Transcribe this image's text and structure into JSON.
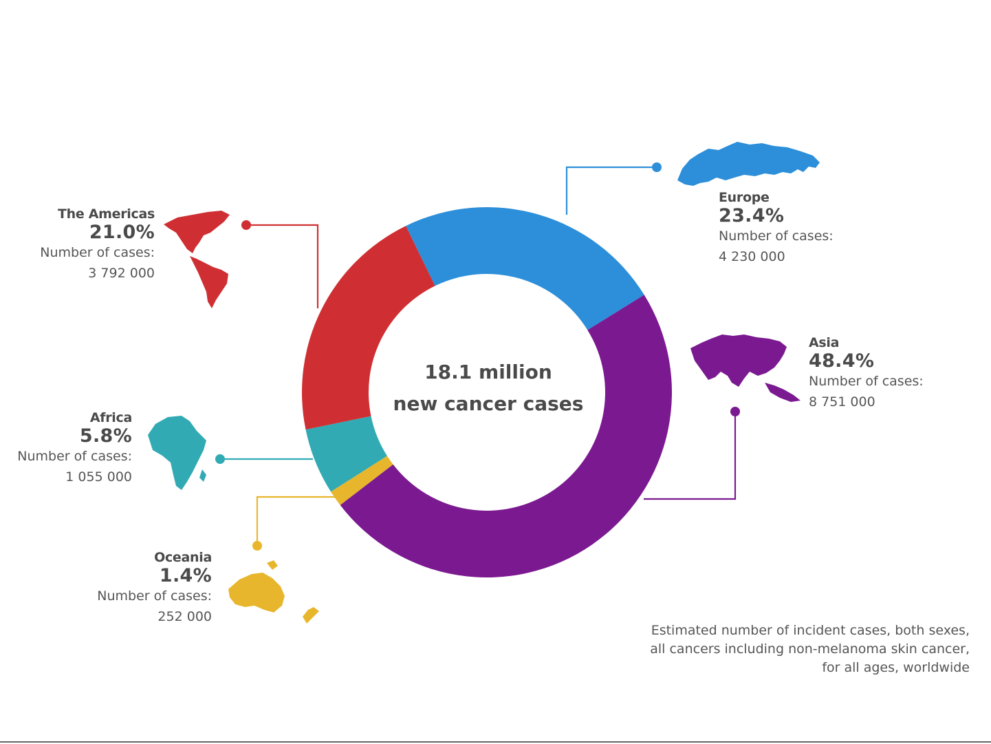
{
  "chart_data": {
    "type": "pie",
    "center_text": [
      "18.1 million",
      "new cancer cases"
    ],
    "slices": [
      {
        "label": "Europe",
        "pct_label": "23.4%",
        "value": 23.4,
        "count": "4 230 000",
        "color": "#2d8fd9"
      },
      {
        "label": "Asia",
        "pct_label": "48.4%",
        "value": 48.4,
        "count": "8 751 000",
        "color": "#7b1990"
      },
      {
        "label": "Oceania",
        "pct_label": "1.4%",
        "value": 1.4,
        "count": "252 000",
        "color": "#e8b62c"
      },
      {
        "label": "Africa",
        "pct_label": "5.8%",
        "value": 5.8,
        "count": "1 055 000",
        "color": "#31aab4"
      },
      {
        "label": "The Americas",
        "pct_label": "21.0%",
        "value": 21.0,
        "count": "3 792 000",
        "color": "#cf2f32"
      }
    ],
    "count_caption": "Number of cases:",
    "footnote": [
      "Estimated number of incident cases, both sexes,",
      "all cancers including non-melanoma skin cancer,",
      "for all ages, worldwide"
    ]
  }
}
